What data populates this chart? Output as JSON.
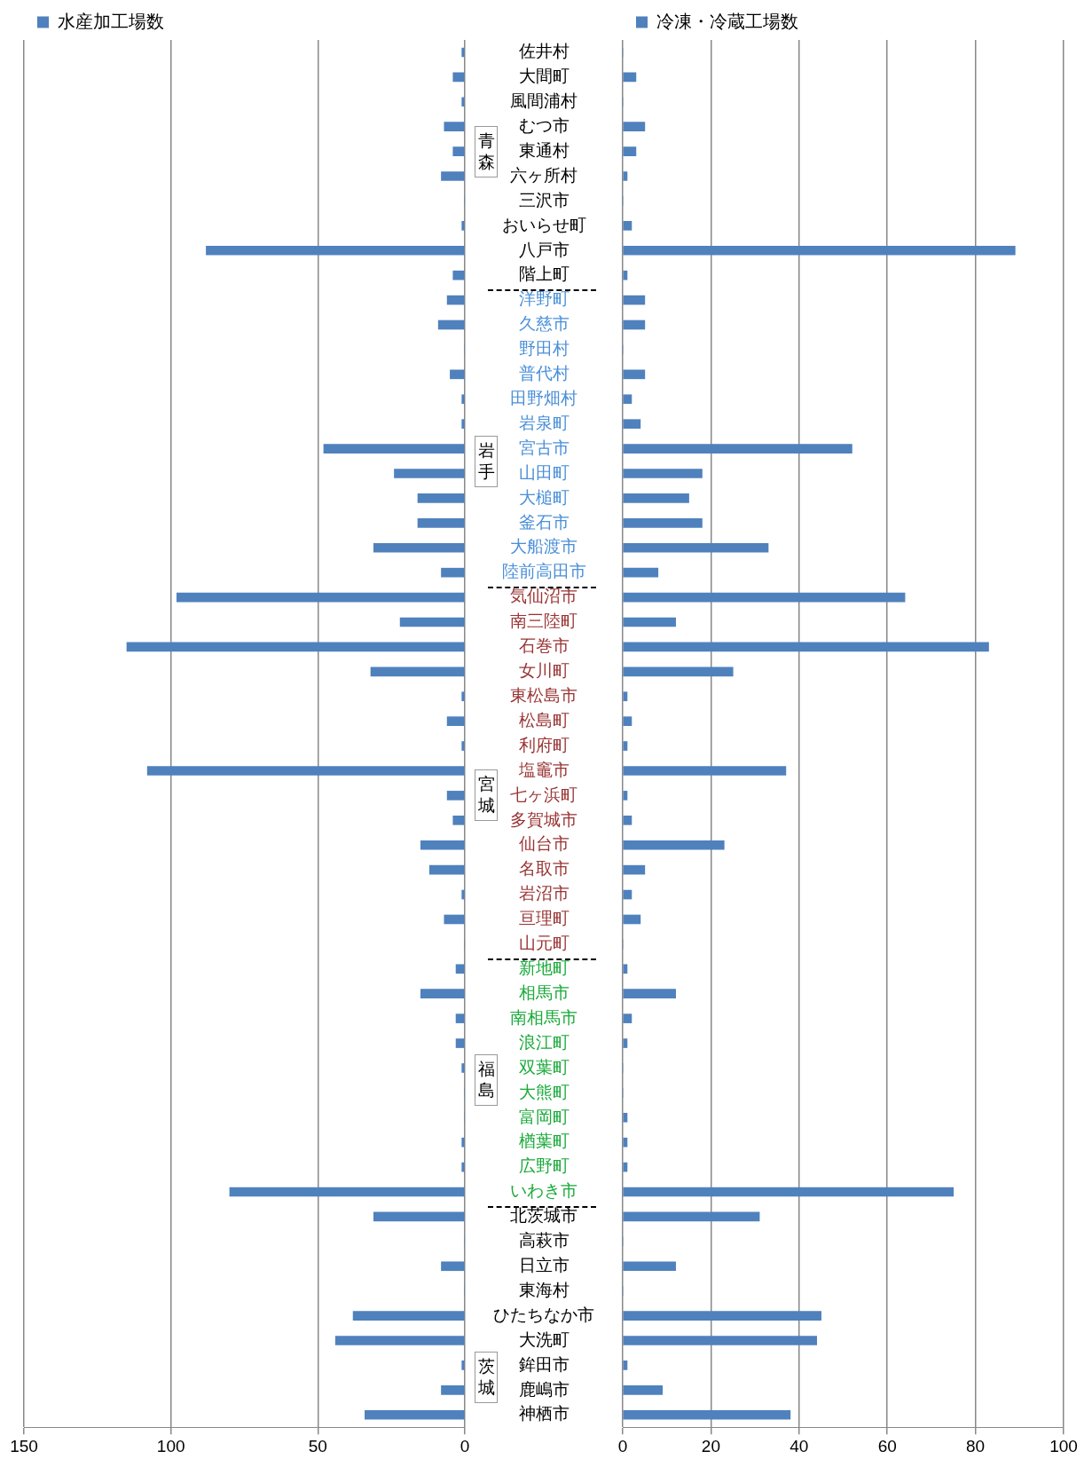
{
  "chart_data": [
    {
      "type": "bar",
      "orientation": "horizontal",
      "categories": [
        "佐井村",
        "大間町",
        "風間浦村",
        "むつ市",
        "東通村",
        "六ヶ所村",
        "三沢市",
        "おいらせ町",
        "八戸市",
        "階上町",
        "洋野町",
        "久慈市",
        "野田村",
        "普代村",
        "田野畑村",
        "岩泉町",
        "宮古市",
        "山田町",
        "大槌町",
        "釜石市",
        "大船渡市",
        "陸前高田市",
        "気仙沼市",
        "南三陸町",
        "石巻市",
        "女川町",
        "東松島市",
        "松島町",
        "利府町",
        "塩竈市",
        "七ヶ浜町",
        "多賀城市",
        "仙台市",
        "名取市",
        "岩沼市",
        "亘理町",
        "山元町",
        "新地町",
        "相馬市",
        "南相馬市",
        "浪江町",
        "双葉町",
        "大熊町",
        "富岡町",
        "楢葉町",
        "広野町",
        "いわき市",
        "北茨城市",
        "高萩市",
        "日立市",
        "東海村",
        "ひたちなか市",
        "大洗町",
        "鉾田市",
        "鹿嶋市",
        "神栖市"
      ],
      "series": [
        {
          "name": "水産加工場数",
          "color": "#4f81bd",
          "values": [
            1,
            4,
            1,
            7,
            4,
            8,
            0,
            1,
            88,
            4,
            6,
            9,
            0,
            5,
            1,
            1,
            48,
            24,
            16,
            16,
            31,
            8,
            98,
            22,
            115,
            32,
            1,
            6,
            1,
            108,
            6,
            4,
            15,
            12,
            1,
            7,
            0,
            3,
            15,
            3,
            3,
            1,
            0,
            0,
            1,
            1,
            80,
            31,
            0,
            8,
            0,
            38,
            44,
            1,
            8,
            34
          ]
        }
      ],
      "xlim": [
        150,
        0
      ],
      "xticks": [
        150,
        100,
        50,
        0
      ],
      "grid": "x",
      "legend": "top left",
      "annotations": [
        "青森",
        "岩手",
        "宮城",
        "福島",
        "茨城"
      ]
    },
    {
      "type": "bar",
      "orientation": "horizontal",
      "categories": [
        null,
        null,
        null,
        null,
        null,
        null,
        null,
        null,
        null,
        null,
        null,
        null,
        null,
        null,
        null,
        null,
        null,
        null,
        null,
        null,
        null,
        null,
        null,
        null,
        null,
        null,
        null,
        null,
        null,
        null,
        null,
        null,
        null,
        null,
        null,
        null,
        null,
        null,
        null,
        null,
        null,
        null,
        null,
        null,
        null,
        null,
        null,
        null,
        null,
        null,
        null,
        null,
        null,
        null,
        null,
        null
      ],
      "series": [
        {
          "name": "冷凍・冷蔵工場数",
          "color": "#4f81bd",
          "values": [
            0,
            3,
            0,
            5,
            3,
            1,
            0,
            2,
            89,
            1,
            5,
            5,
            0,
            5,
            2,
            4,
            52,
            18,
            15,
            18,
            33,
            8,
            64,
            12,
            83,
            25,
            1,
            2,
            1,
            37,
            1,
            2,
            23,
            5,
            2,
            4,
            0,
            1,
            12,
            2,
            1,
            0,
            0,
            1,
            1,
            1,
            75,
            31,
            0,
            12,
            0,
            45,
            44,
            1,
            9,
            38
          ]
        }
      ],
      "xlim": [
        0,
        100
      ],
      "xticks": [
        0,
        20,
        40,
        60,
        80,
        100
      ],
      "grid": "x",
      "legend": "top left",
      "tick_labels": "x"
    }
  ]
}
